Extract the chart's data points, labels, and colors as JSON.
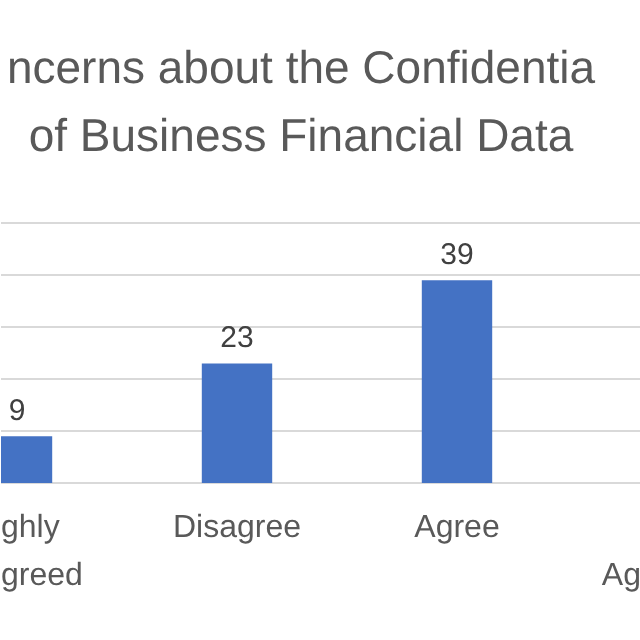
{
  "chart_data": {
    "type": "bar",
    "title": "ncerns about the Confidentia\nof Business Financial Data",
    "categories": [
      "ghly\ngreed",
      "Disagree",
      "Agree",
      "\nAg"
    ],
    "values": [
      9,
      23,
      39,
      null
    ],
    "color": "#4472c4",
    "data_labels": true,
    "ylim": [
      0,
      50
    ],
    "yticks": [
      {
        "value": 0,
        "label": null
      },
      {
        "value": 10,
        "label": null
      },
      {
        "value": 20,
        "label": null
      },
      {
        "value": 30,
        "label": null
      },
      {
        "value": 40,
        "label": null
      },
      {
        "value": 50,
        "label": null
      }
    ],
    "grid": "y"
  }
}
